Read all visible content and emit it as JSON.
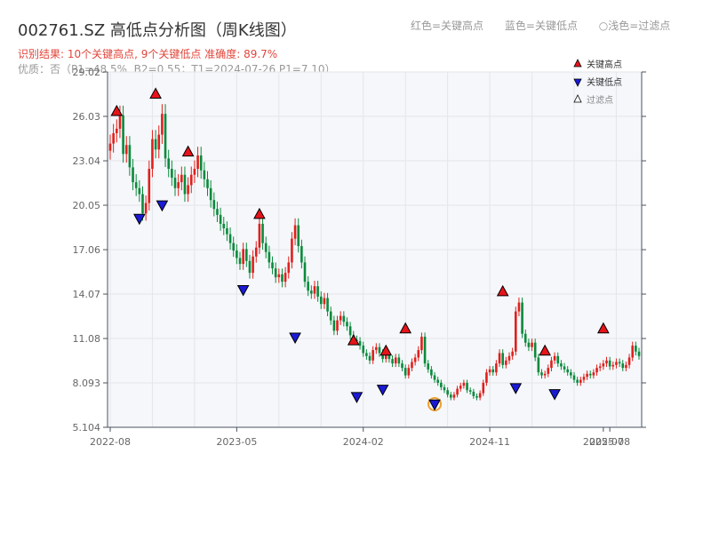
{
  "title": "002761.SZ 高低点分析图（周K线图）",
  "top_legend": [
    "红色=关键高点",
    "蓝色=关键低点",
    "○浅色=过滤点"
  ],
  "subtitle_result": "识别结果: 10个关键高点, 9个关键低点   准确度: 89.7%",
  "subtitle_quality": "优质：否（P1=48.5%, B2=0.55；T1=2024-07-26 P1=7.10）",
  "colors": {
    "up": "#e0201c",
    "down": "#0a8a3c",
    "high_marker": "#e8131a",
    "low_marker": "#1a1ad6",
    "filtered": "#f0a030",
    "plot_bg": "#f5f7fa"
  },
  "chart_data": {
    "type": "candlestick",
    "title": "002761.SZ 高低点分析图（周K线图）",
    "y_ticks": [
      "5.104",
      "8.093",
      "11.08",
      "14.07",
      "17.06",
      "20.05",
      "23.04",
      "26.03",
      "29.02"
    ],
    "ylim": [
      5.104,
      29.02
    ],
    "x_tick_labels": [
      "2022-08",
      "2023-05",
      "2024-02",
      "2024-11",
      "2025-07",
      "2025-08"
    ],
    "x_tick_week_index": [
      0,
      39,
      78,
      117,
      152,
      154
    ],
    "grid": true,
    "legend": {
      "position": "top-right",
      "entries": [
        "关键高点",
        "关键低点",
        "过滤点"
      ]
    },
    "weekly_closes": [
      24.2,
      24.9,
      25.2,
      26.1,
      23.5,
      24.1,
      22.6,
      21.6,
      21.2,
      20.8,
      19.5,
      20.2,
      22.5,
      24.5,
      23.8,
      24.8,
      26.2,
      23.2,
      22.5,
      21.9,
      21.2,
      21.6,
      22.1,
      20.8,
      21.4,
      22.1,
      22.5,
      23.4,
      22.4,
      21.8,
      21.2,
      20.4,
      19.8,
      19.4,
      18.8,
      18.5,
      18.1,
      17.5,
      17.0,
      16.5,
      16.1,
      17.1,
      16.3,
      15.5,
      16.6,
      17.2,
      18.8,
      17.5,
      16.9,
      16.2,
      15.8,
      15.2,
      15.4,
      14.9,
      15.5,
      16.2,
      17.8,
      18.7,
      17.3,
      16.2,
      14.9,
      14.3,
      14.1,
      14.6,
      13.9,
      13.4,
      13.8,
      12.9,
      12.3,
      11.6,
      12.3,
      12.6,
      12.2,
      11.9,
      11.3,
      11.0,
      10.9,
      10.6,
      10.1,
      9.9,
      9.6,
      10.3,
      10.5,
      10.1,
      9.7,
      10.0,
      9.7,
      9.4,
      9.8,
      9.4,
      9.1,
      8.6,
      9.1,
      9.5,
      9.8,
      10.3,
      11.2,
      9.4,
      9.0,
      8.6,
      8.3,
      8.1,
      7.8,
      7.6,
      7.3,
      7.1,
      7.3,
      7.7,
      7.9,
      8.1,
      7.6,
      7.5,
      7.2,
      7.1,
      7.4,
      8.1,
      8.8,
      9.0,
      8.8,
      9.4,
      10.1,
      9.3,
      9.6,
      9.9,
      10.2,
      12.9,
      13.5,
      11.4,
      10.8,
      10.5,
      10.8,
      9.8,
      8.8,
      8.6,
      8.7,
      9.1,
      9.6,
      9.9,
      9.4,
      9.2,
      9.0,
      8.8,
      8.6,
      8.3,
      8.1,
      8.3,
      8.5,
      8.7,
      8.6,
      8.8,
      9.1,
      9.2,
      9.4,
      9.6,
      9.2,
      9.3,
      9.5,
      9.4,
      9.1,
      9.3,
      9.8,
      10.6,
      10.2,
      9.9
    ],
    "key_highs": [
      {
        "week": 2,
        "price": 26.03
      },
      {
        "week": 14,
        "price": 27.2
      },
      {
        "week": 24,
        "price": 23.3
      },
      {
        "week": 46,
        "price": 19.1
      },
      {
        "week": 75,
        "price": 10.6
      },
      {
        "week": 85,
        "price": 9.9
      },
      {
        "week": 91,
        "price": 11.4
      },
      {
        "week": 121,
        "price": 13.9
      },
      {
        "week": 134,
        "price": 9.9
      },
      {
        "week": 152,
        "price": 11.4
      }
    ],
    "key_lows": [
      {
        "week": 9,
        "price": 19.5
      },
      {
        "week": 16,
        "price": 20.4
      },
      {
        "week": 41,
        "price": 14.7
      },
      {
        "week": 57,
        "price": 11.5
      },
      {
        "week": 76,
        "price": 7.5
      },
      {
        "week": 84,
        "price": 8.0
      },
      {
        "week": 100,
        "price": 7.0
      },
      {
        "week": 125,
        "price": 8.1
      },
      {
        "week": 137,
        "price": 7.7
      }
    ],
    "filtered_points": [
      {
        "week": 100,
        "price": 6.9
      }
    ]
  }
}
